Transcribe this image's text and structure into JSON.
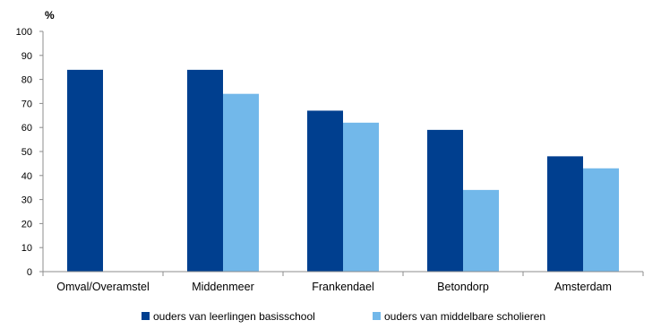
{
  "chart_data": {
    "type": "bar",
    "unit_label": "%",
    "categories": [
      "Omval/Overamstel",
      "Middenmeer",
      "Frankendael",
      "Betondorp",
      "Amsterdam"
    ],
    "series": [
      {
        "name": "ouders van leerlingen basisschool",
        "color": "#003f8f",
        "values": [
          84,
          84,
          67,
          59,
          48
        ]
      },
      {
        "name": "ouders van middelbare scholieren",
        "color": "#72b8ea",
        "values": [
          null,
          74,
          62,
          34,
          43
        ]
      }
    ],
    "ylim": [
      0,
      100
    ],
    "yticks": [
      0,
      10,
      20,
      30,
      40,
      50,
      60,
      70,
      80,
      90,
      100
    ],
    "grid": false,
    "legend_position": "bottom"
  }
}
